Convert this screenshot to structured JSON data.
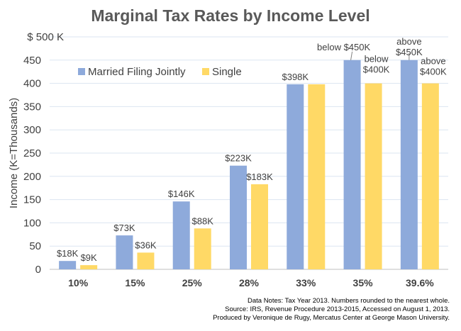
{
  "chart_data": {
    "type": "bar",
    "title": "Marginal Tax Rates by Income Level",
    "ylabel": "Income (K=Thousands)",
    "xlabel": "",
    "ylim": [
      0,
      500
    ],
    "yticks": [
      "0",
      "50",
      "100",
      "150",
      "200",
      "250",
      "300",
      "350",
      "400",
      "450",
      "$ 500 K"
    ],
    "grid": true,
    "legend_position": "top-left",
    "categories": [
      "10%",
      "15%",
      "25%",
      "28%",
      "33%",
      "35%",
      "39.6%"
    ],
    "series": [
      {
        "name": "Married Filing Jointly",
        "color": "#8eaadb",
        "values": [
          18,
          73,
          146,
          223,
          398,
          450,
          450
        ],
        "labels": [
          "$18K",
          "$73K",
          "$146K",
          "$223K",
          "$398K",
          "below $450K",
          "above\n$450K"
        ]
      },
      {
        "name": "Single",
        "color": "#ffd966",
        "values": [
          9,
          36,
          88,
          183,
          398,
          400,
          400
        ],
        "labels": [
          "$9K",
          "$36K",
          "$88K",
          "$183K",
          "",
          "below\n$400K",
          "above\n$400K"
        ]
      }
    ],
    "notes": [
      "Data Notes: Tax Year 2013. Numbers rounded to the nearest whole.",
      "Source: IRS, Revenue Procedure 2013-2015, Accessed on August 1, 2013.",
      "Produced by Veronique de Rugy, Mercatus Center at George Mason University."
    ]
  }
}
